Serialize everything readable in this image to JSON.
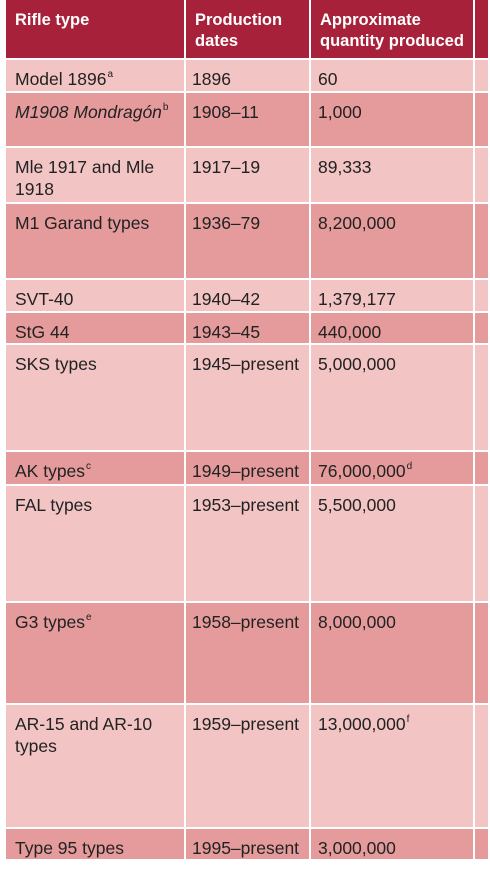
{
  "table": {
    "headers": {
      "rifle_type": "Rifle type",
      "production_dates": "Production dates",
      "quantity": "Approximate quantity produced"
    },
    "rows": [
      {
        "type": "Model 1896",
        "type_sup": "a",
        "italic": false,
        "dates": "1896",
        "qty": "60",
        "qty_sup": ""
      },
      {
        "type": "M1908 Mondragón",
        "type_sup": "b",
        "italic": true,
        "dates": "1908–11",
        "qty": "1,000",
        "qty_sup": ""
      },
      {
        "type": "Mle 1917 and Mle 1918",
        "type_sup": "",
        "italic": false,
        "dates": "1917–19",
        "qty": "89,333",
        "qty_sup": ""
      },
      {
        "type": "M1 Garand types",
        "type_sup": "",
        "italic": false,
        "dates": "1936–79",
        "qty": "8,200,000",
        "qty_sup": ""
      },
      {
        "type": "SVT-40",
        "type_sup": "",
        "italic": false,
        "dates": "1940–42",
        "qty": "1,379,177",
        "qty_sup": ""
      },
      {
        "type": "StG 44",
        "type_sup": "",
        "italic": false,
        "dates": "1943–45",
        "qty": "440,000",
        "qty_sup": ""
      },
      {
        "type": "SKS types",
        "type_sup": "",
        "italic": false,
        "dates": "1945–present",
        "qty": "5,000,000",
        "qty_sup": ""
      },
      {
        "type": "AK types",
        "type_sup": "c",
        "italic": false,
        "dates": "1949–present",
        "qty": "76,000,000",
        "qty_sup": "d"
      },
      {
        "type": "FAL types",
        "type_sup": "",
        "italic": false,
        "dates": "1953–present",
        "qty": "5,500,000",
        "qty_sup": ""
      },
      {
        "type": "G3 types",
        "type_sup": "e",
        "italic": false,
        "dates": "1958–present",
        "qty": "8,000,000",
        "qty_sup": ""
      },
      {
        "type": "AR-15 and AR-10 types",
        "type_sup": "",
        "italic": false,
        "dates": "1959–present",
        "qty": "13,000,000",
        "qty_sup": "f"
      },
      {
        "type": "Type 95 types",
        "type_sup": "",
        "italic": false,
        "dates": "1995–present",
        "qty": "3,000,000",
        "qty_sup": ""
      }
    ]
  },
  "colors": {
    "header": "#a8213a",
    "row_light": "#f2c4c4",
    "row_dark": "#e59b9b"
  }
}
